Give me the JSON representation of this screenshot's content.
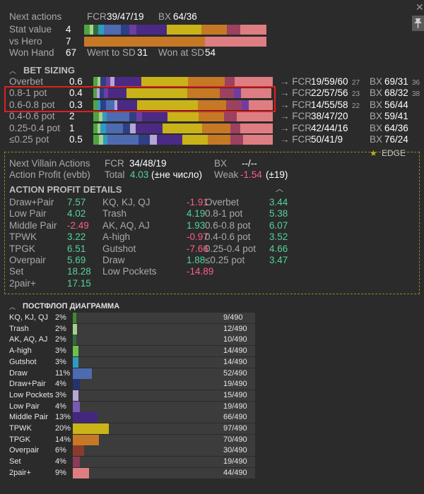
{
  "colors": {
    "blue": "#4e6bb1",
    "navy": "#2e3f86",
    "purple": "#4b2a86",
    "violet": "#6f3da1",
    "lav": "#b3a7d6",
    "yellow": "#c9b318",
    "orange": "#c77825",
    "rose": "#9c4160",
    "pink": "#df7e82",
    "green": "#4ea53f",
    "lgreen": "#a8d08c",
    "teal": "#2b9ec0"
  },
  "top": {
    "next_actions": {
      "label": "Next actions",
      "fcr_label": "FCR",
      "fcr": "39/47/19",
      "bx_label": "BX",
      "bx": "64/36"
    },
    "stat_value": {
      "label": "Stat value",
      "value": "4"
    },
    "vs_hero": {
      "label": "vs Hero",
      "value": "7"
    },
    "won_hand": {
      "label": "Won Hand",
      "value": "67",
      "wtsd_label": "Went to SD",
      "wtsd": "31",
      "wasd_label": "Won at SD",
      "wasd": "54"
    }
  },
  "bet_sizing": {
    "title": "BET SIZING",
    "rows": [
      {
        "label": "Overbet",
        "value": "0.6",
        "fcr": "19/59/60",
        "fcr_sub": "27",
        "bx": "69/31",
        "bx_sub": "36"
      },
      {
        "label": "0.8-1 pot",
        "value": "0.4",
        "fcr": "22/57/56",
        "fcr_sub": "23",
        "bx": "68/32",
        "bx_sub": "38"
      },
      {
        "label": "0.6-0.8 pot",
        "value": "0.3",
        "fcr": "14/55/58",
        "fcr_sub": "22",
        "bx": "56/44",
        "bx_sub": ""
      },
      {
        "label": "0.4-0.6 pot",
        "value": "2",
        "fcr": "38/47/20",
        "fcr_sub": "",
        "bx": "59/41",
        "bx_sub": ""
      },
      {
        "label": "0.25-0.4 pot",
        "value": "1",
        "fcr": "42/44/16",
        "fcr_sub": "",
        "bx": "64/36",
        "bx_sub": ""
      },
      {
        "label": "≤0.25 pot",
        "value": "0.5",
        "fcr": "50/41/9",
        "fcr_sub": "",
        "bx": "76/24",
        "bx_sub": ""
      }
    ],
    "arrow": "→ FCR",
    "bx_label": "BX"
  },
  "edge_label": "EDGE",
  "villain": {
    "next_label": "Next Villain Actions",
    "fcr_label": "FCR",
    "fcr": "34/48/19",
    "bx_label": "BX",
    "bx": "--/--",
    "profit_label": "Action Profit (evbb)",
    "total_label": "Total",
    "total": "4.03",
    "total_note": "(±не число)",
    "weak_label": "Weak",
    "weak": "-1.54",
    "weak_note": "(±19)"
  },
  "details": {
    "title": "ACTION PROFIT DETAILS",
    "col1": [
      {
        "name": "Draw+Pair",
        "value": "7.57",
        "sign": "pos"
      },
      {
        "name": "Low Pair",
        "value": "4.02",
        "sign": "pos"
      },
      {
        "name": "Middle Pair",
        "value": "-2.49",
        "sign": "neg"
      },
      {
        "name": "TPWK",
        "value": "3.22",
        "sign": "pos"
      },
      {
        "name": "TPGK",
        "value": "6.51",
        "sign": "pos"
      },
      {
        "name": "Overpair",
        "value": "5.69",
        "sign": "pos"
      },
      {
        "name": "Set",
        "value": "18.28",
        "sign": "pos"
      },
      {
        "name": "2pair+",
        "value": "17.15",
        "sign": "pos"
      }
    ],
    "col2": [
      {
        "name": "KQ, KJ, QJ",
        "value": "-1.91",
        "sign": "neg"
      },
      {
        "name": "Trash",
        "value": "4.19",
        "sign": "pos"
      },
      {
        "name": "AK, AQ, AJ",
        "value": "1.93",
        "sign": "pos"
      },
      {
        "name": "A-high",
        "value": "-0.97",
        "sign": "neg"
      },
      {
        "name": "Gutshot",
        "value": "-7.66",
        "sign": "neg"
      },
      {
        "name": "Draw",
        "value": "1.88",
        "sign": "pos"
      },
      {
        "name": "Low Pockets",
        "value": "-14.89",
        "sign": "neg"
      }
    ],
    "col3": [
      {
        "name": "Overbet",
        "value": "3.44",
        "sign": "pos"
      },
      {
        "name": "0.8-1 pot",
        "value": "5.38",
        "sign": "pos"
      },
      {
        "name": "0.6-0.8 pot",
        "value": "6.07",
        "sign": "pos"
      },
      {
        "name": "0.4-0.6 pot",
        "value": "3.52",
        "sign": "pos"
      },
      {
        "name": "0.25-0.4 pot",
        "value": "4.66",
        "sign": "pos"
      },
      {
        "name": "≤0.25 pot",
        "value": "3.47",
        "sign": "pos"
      }
    ]
  },
  "diagram": {
    "title": "ПОСТФЛОП ДИАГРАММА",
    "rows": [
      {
        "label": "KQ, KJ, QJ",
        "pct": "2%",
        "count": "9/490",
        "fraction": 0.018,
        "color": "#3f8a2f"
      },
      {
        "label": "Trash",
        "pct": "2%",
        "count": "12/490",
        "fraction": 0.024,
        "color": "#a8d08c"
      },
      {
        "label": "AK, AQ, AJ",
        "pct": "2%",
        "count": "10/490",
        "fraction": 0.02,
        "color": "#2d6f3a"
      },
      {
        "label": "A-high",
        "pct": "3%",
        "count": "14/490",
        "fraction": 0.029,
        "color": "#6fc04a"
      },
      {
        "label": "Gutshot",
        "pct": "3%",
        "count": "14/490",
        "fraction": 0.029,
        "color": "#2b9ec0"
      },
      {
        "label": "Draw",
        "pct": "11%",
        "count": "52/490",
        "fraction": 0.106,
        "color": "#4e6bb1"
      },
      {
        "label": "Draw+Pair",
        "pct": "4%",
        "count": "19/490",
        "fraction": 0.039,
        "color": "#24336e"
      },
      {
        "label": "Low Pockets",
        "pct": "3%",
        "count": "15/490",
        "fraction": 0.031,
        "color": "#b3a7d6"
      },
      {
        "label": "Low Pair",
        "pct": "4%",
        "count": "19/490",
        "fraction": 0.039,
        "color": "#7a59b0"
      },
      {
        "label": "Middle Pair",
        "pct": "13%",
        "count": "66/490",
        "fraction": 0.135,
        "color": "#43277d"
      },
      {
        "label": "TPWK",
        "pct": "20%",
        "count": "97/490",
        "fraction": 0.198,
        "color": "#c9b318"
      },
      {
        "label": "TPGK",
        "pct": "14%",
        "count": "70/490",
        "fraction": 0.143,
        "color": "#c77825"
      },
      {
        "label": "Overpair",
        "pct": "6%",
        "count": "30/490",
        "fraction": 0.061,
        "color": "#8a3c2c"
      },
      {
        "label": "Set",
        "pct": "4%",
        "count": "19/490",
        "fraction": 0.039,
        "color": "#8c3a5c"
      },
      {
        "label": "2pair+",
        "pct": "9%",
        "count": "44/490",
        "fraction": 0.09,
        "color": "#df7e82"
      }
    ]
  }
}
